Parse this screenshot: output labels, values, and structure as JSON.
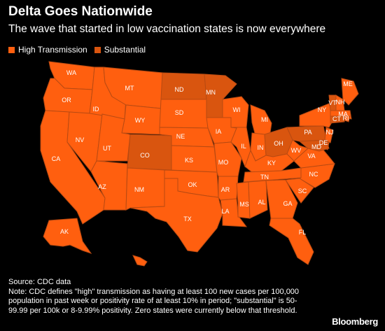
{
  "title": "Delta Goes Nationwide",
  "subtitle": "The wave that started in low vaccination states is now everywhere",
  "legend": [
    {
      "label": "High Transmission",
      "color": "#ff5f0f"
    },
    {
      "label": "Substantial",
      "color": "#d9550f"
    }
  ],
  "colors": {
    "high": "#ff5f0f",
    "substantial": "#d9550f",
    "border": "#b84a12",
    "background": "#000000"
  },
  "states": {
    "WA": "high",
    "OR": "high",
    "CA": "high",
    "NV": "high",
    "ID": "high",
    "MT": "high",
    "WY": "high",
    "UT": "high",
    "AZ": "high",
    "CO": "substantial",
    "NM": "high",
    "ND": "substantial",
    "SD": "high",
    "NE": "high",
    "KS": "high",
    "OK": "high",
    "TX": "high",
    "MN": "substantial",
    "IA": "high",
    "MO": "high",
    "AR": "high",
    "LA": "high",
    "WI": "high",
    "IL": "high",
    "MS": "high",
    "MI": "high",
    "IN": "high",
    "OH": "substantial",
    "KY": "high",
    "TN": "high",
    "AL": "high",
    "GA": "high",
    "FL": "high",
    "SC": "high",
    "NC": "high",
    "VA": "high",
    "WV": "high",
    "PA": "substantial",
    "NY": "high",
    "ME": "high",
    "VT": "substantial",
    "NH": "high",
    "MA": "high",
    "RI": "high",
    "CT": "substantial",
    "NJ": "high",
    "DE": "high",
    "MD": "substantial",
    "AK": "high",
    "HI": "high"
  },
  "footnote": {
    "source": "Source: CDC data",
    "note": "Note: CDC defines \"high\" transmission as having at least 100 new cases per 100,000 population in past week or positivity rate of at least 10% in period; \"substantial\" is 50-99.99 per 100k or 8-9.99% positivity. Zero states were currently below that threshold."
  },
  "brand": "Bloomberg"
}
